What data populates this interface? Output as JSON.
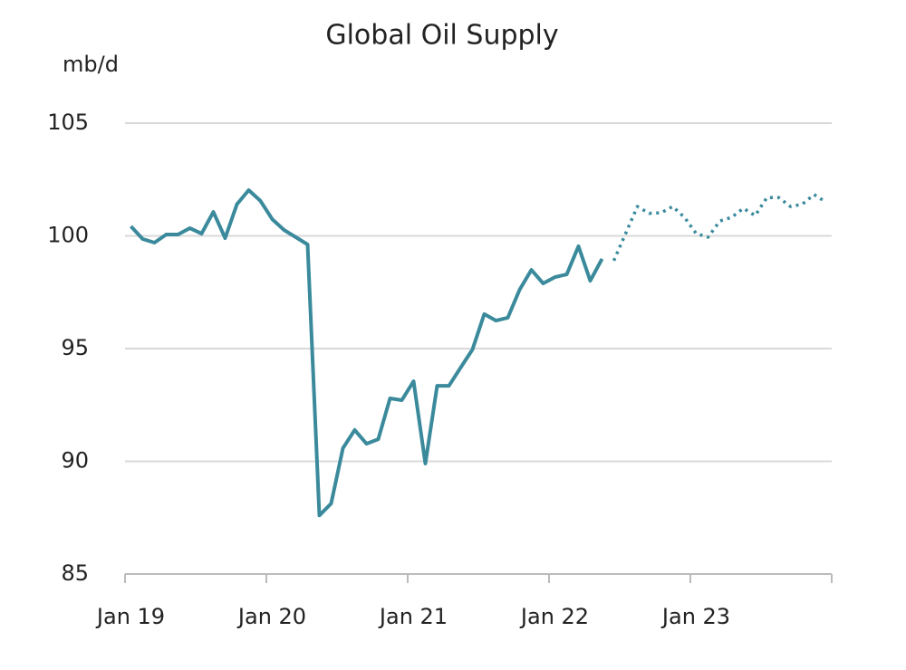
{
  "chart_data": {
    "type": "line",
    "title": "Global Oil Supply",
    "y_label": "mb/d",
    "categories": [
      "Jan 19",
      null,
      null,
      null,
      null,
      null,
      null,
      null,
      null,
      null,
      null,
      null,
      "Jan 20",
      null,
      null,
      null,
      null,
      null,
      null,
      null,
      null,
      null,
      null,
      null,
      "Jan 21",
      null,
      null,
      null,
      null,
      null,
      null,
      null,
      null,
      null,
      null,
      null,
      "Jan 22",
      null,
      null,
      null,
      null,
      null,
      null,
      null,
      null,
      null,
      null,
      null,
      "Jan 23",
      null,
      null,
      null,
      null,
      null,
      null,
      null,
      null,
      null,
      null,
      null
    ],
    "series": [
      {
        "color": "#3a8a9c",
        "style": "solid",
        "values": [
          100.42,
          99.86,
          99.7,
          100.06,
          100.06,
          100.34,
          100.1,
          101.06,
          99.9,
          101.4,
          102.03,
          101.55,
          100.74,
          100.26,
          99.94,
          99.62,
          87.6,
          88.13,
          90.58,
          91.39,
          90.78,
          90.98,
          92.79,
          92.71,
          93.55,
          89.9,
          93.35,
          93.35,
          94.16,
          94.96,
          96.53,
          96.24,
          96.37,
          97.61,
          98.49,
          97.89,
          98.17,
          98.29,
          99.54,
          98.01,
          98.98,
          null,
          null,
          null,
          null,
          null,
          null,
          null,
          null,
          null,
          null,
          null,
          null,
          null,
          null,
          null,
          null,
          null,
          null,
          null
        ]
      },
      {
        "color": "#3a8a9c",
        "style": "dotted",
        "values": [
          null,
          null,
          null,
          null,
          null,
          null,
          null,
          null,
          null,
          null,
          null,
          null,
          null,
          null,
          null,
          null,
          null,
          null,
          null,
          null,
          null,
          null,
          null,
          null,
          null,
          null,
          null,
          null,
          null,
          null,
          null,
          null,
          null,
          null,
          null,
          null,
          null,
          null,
          null,
          null,
          null,
          98.9,
          100.1,
          101.3,
          101.0,
          101.02,
          101.3,
          100.82,
          100.1,
          99.94,
          100.66,
          100.82,
          101.22,
          100.9,
          101.7,
          101.7,
          101.3,
          101.4,
          101.83,
          101.5
        ]
      }
    ],
    "ylim": [
      85,
      105
    ],
    "yticks": [
      85,
      90,
      95,
      100,
      105
    ],
    "grid": true
  }
}
